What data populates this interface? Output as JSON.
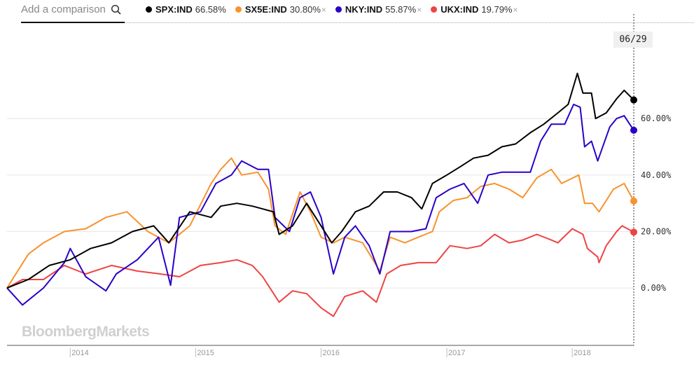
{
  "search": {
    "placeholder": "Add a comparison",
    "icon": "search-icon"
  },
  "legend": [
    {
      "ticker": "SPX:IND",
      "value": "66.58%",
      "color": "#000000",
      "removable": false
    },
    {
      "ticker": "SX5E:IND",
      "value": "30.80%",
      "color": "#f7922e",
      "removable": true
    },
    {
      "ticker": "NKY:IND",
      "value": "55.87%",
      "color": "#2a00c8",
      "removable": true
    },
    {
      "ticker": "UKX:IND",
      "value": "19.79%",
      "color": "#ee4444",
      "removable": true
    }
  ],
  "remove_glyph": "×",
  "cursor_date": "06/29",
  "watermark": "BloombergMarkets",
  "chart_data": {
    "type": "line",
    "x_range": [
      "2013-07-01",
      "2018-06-29"
    ],
    "ylim": [
      -20.3,
      90.8
    ],
    "yticks": [
      0,
      20,
      40,
      60
    ],
    "ytick_labels": [
      "0.00%",
      "20.00%",
      "40.00%",
      "60.00%"
    ],
    "xticks": [
      "2014-01-01",
      "2015-01-01",
      "2016-01-01",
      "2017-01-01",
      "2018-01-01"
    ],
    "xtick_labels": [
      "2014",
      "2015",
      "2016",
      "2017",
      "2018"
    ],
    "grid": true,
    "legend_placement": "top",
    "series": [
      {
        "name": "SPX:IND",
        "color": "#000000",
        "points": [
          [
            "2013-07-01",
            0
          ],
          [
            "2013-09-01",
            3
          ],
          [
            "2013-11-01",
            8
          ],
          [
            "2014-01-01",
            10
          ],
          [
            "2014-03-01",
            14
          ],
          [
            "2014-05-01",
            16
          ],
          [
            "2014-07-01",
            20
          ],
          [
            "2014-09-01",
            22
          ],
          [
            "2014-10-15",
            16
          ],
          [
            "2014-12-15",
            27
          ],
          [
            "2015-02-15",
            25
          ],
          [
            "2015-03-15",
            29
          ],
          [
            "2015-05-01",
            30
          ],
          [
            "2015-06-15",
            29
          ],
          [
            "2015-07-15",
            28
          ],
          [
            "2015-08-15",
            27
          ],
          [
            "2015-09-01",
            19
          ],
          [
            "2015-10-10",
            22
          ],
          [
            "2015-11-20",
            30
          ],
          [
            "2016-01-01",
            22
          ],
          [
            "2016-02-01",
            16
          ],
          [
            "2016-03-01",
            20
          ],
          [
            "2016-04-10",
            27
          ],
          [
            "2016-05-20",
            29
          ],
          [
            "2016-07-01",
            34
          ],
          [
            "2016-08-10",
            34
          ],
          [
            "2016-09-20",
            32
          ],
          [
            "2016-10-20",
            28
          ],
          [
            "2016-11-20",
            37
          ],
          [
            "2017-01-01",
            40
          ],
          [
            "2017-02-10",
            43
          ],
          [
            "2017-03-20",
            46
          ],
          [
            "2017-05-01",
            47
          ],
          [
            "2017-06-10",
            50
          ],
          [
            "2017-07-20",
            51
          ],
          [
            "2017-09-01",
            55
          ],
          [
            "2017-10-10",
            58
          ],
          [
            "2017-11-20",
            62
          ],
          [
            "2017-12-20",
            65
          ],
          [
            "2018-01-16",
            76
          ],
          [
            "2018-02-01",
            69
          ],
          [
            "2018-02-26",
            69
          ],
          [
            "2018-03-10",
            60
          ],
          [
            "2018-04-10",
            62
          ],
          [
            "2018-05-10",
            67
          ],
          [
            "2018-06-01",
            70
          ],
          [
            "2018-06-29",
            66.58
          ]
        ]
      },
      {
        "name": "SX5E:IND",
        "color": "#f7922e",
        "points": [
          [
            "2013-07-01",
            0
          ],
          [
            "2013-09-01",
            12
          ],
          [
            "2013-10-15",
            16
          ],
          [
            "2013-12-15",
            20
          ],
          [
            "2014-02-15",
            21
          ],
          [
            "2014-04-15",
            25
          ],
          [
            "2014-06-15",
            27
          ],
          [
            "2014-08-15",
            20
          ],
          [
            "2014-10-15",
            16
          ],
          [
            "2014-12-15",
            22
          ],
          [
            "2015-02-15",
            37
          ],
          [
            "2015-03-15",
            42
          ],
          [
            "2015-04-15",
            46
          ],
          [
            "2015-05-15",
            40
          ],
          [
            "2015-07-01",
            41
          ],
          [
            "2015-08-01",
            35
          ],
          [
            "2015-08-20",
            22
          ],
          [
            "2015-09-20",
            19
          ],
          [
            "2015-11-01",
            34
          ],
          [
            "2015-12-01",
            27
          ],
          [
            "2016-01-01",
            18
          ],
          [
            "2016-02-06",
            16
          ],
          [
            "2016-03-10",
            18
          ],
          [
            "2016-05-01",
            16
          ],
          [
            "2016-06-20",
            6
          ],
          [
            "2016-07-20",
            18
          ],
          [
            "2016-09-01",
            16
          ],
          [
            "2016-10-10",
            18
          ],
          [
            "2016-11-20",
            20
          ],
          [
            "2016-12-10",
            27
          ],
          [
            "2017-01-20",
            31
          ],
          [
            "2017-03-01",
            32
          ],
          [
            "2017-04-10",
            36
          ],
          [
            "2017-05-20",
            37
          ],
          [
            "2017-07-01",
            35
          ],
          [
            "2017-08-10",
            32
          ],
          [
            "2017-09-20",
            39
          ],
          [
            "2017-11-01",
            42
          ],
          [
            "2017-12-01",
            37
          ],
          [
            "2018-01-20",
            40
          ],
          [
            "2018-02-06",
            30
          ],
          [
            "2018-03-01",
            30
          ],
          [
            "2018-03-20",
            27
          ],
          [
            "2018-05-01",
            35
          ],
          [
            "2018-06-01",
            37
          ],
          [
            "2018-06-29",
            30.8
          ]
        ]
      },
      {
        "name": "NKY:IND",
        "color": "#2a00c8",
        "points": [
          [
            "2013-07-01",
            0
          ],
          [
            "2013-08-15",
            -6
          ],
          [
            "2013-10-15",
            0
          ],
          [
            "2013-12-15",
            9
          ],
          [
            "2014-01-01",
            14
          ],
          [
            "2014-02-15",
            4
          ],
          [
            "2014-04-15",
            -1
          ],
          [
            "2014-05-15",
            5
          ],
          [
            "2014-07-15",
            10
          ],
          [
            "2014-09-15",
            18
          ],
          [
            "2014-10-20",
            1
          ],
          [
            "2014-11-15",
            25
          ],
          [
            "2015-01-15",
            27
          ],
          [
            "2015-03-01",
            37
          ],
          [
            "2015-04-15",
            40
          ],
          [
            "2015-05-15",
            45
          ],
          [
            "2015-07-01",
            42
          ],
          [
            "2015-08-01",
            42
          ],
          [
            "2015-08-20",
            25
          ],
          [
            "2015-10-01",
            20
          ],
          [
            "2015-11-01",
            32
          ],
          [
            "2015-12-01",
            34
          ],
          [
            "2016-01-01",
            25
          ],
          [
            "2016-02-06",
            5
          ],
          [
            "2016-03-10",
            18
          ],
          [
            "2016-04-10",
            22
          ],
          [
            "2016-05-20",
            15
          ],
          [
            "2016-06-20",
            5
          ],
          [
            "2016-07-20",
            20
          ],
          [
            "2016-09-20",
            20
          ],
          [
            "2016-11-01",
            21
          ],
          [
            "2016-12-01",
            32
          ],
          [
            "2017-01-10",
            35
          ],
          [
            "2017-02-20",
            37
          ],
          [
            "2017-04-01",
            30
          ],
          [
            "2017-05-01",
            40
          ],
          [
            "2017-06-10",
            41
          ],
          [
            "2017-07-20",
            41
          ],
          [
            "2017-09-01",
            41
          ],
          [
            "2017-10-01",
            52
          ],
          [
            "2017-11-01",
            58
          ],
          [
            "2017-12-10",
            58
          ],
          [
            "2018-01-05",
            65
          ],
          [
            "2018-01-24",
            64
          ],
          [
            "2018-02-06",
            50
          ],
          [
            "2018-02-26",
            52
          ],
          [
            "2018-03-16",
            45
          ],
          [
            "2018-04-20",
            57
          ],
          [
            "2018-05-10",
            60
          ],
          [
            "2018-06-01",
            61
          ],
          [
            "2018-06-29",
            55.87
          ]
        ]
      },
      {
        "name": "UKX:IND",
        "color": "#ee4444",
        "points": [
          [
            "2013-07-01",
            0
          ],
          [
            "2013-08-15",
            3
          ],
          [
            "2013-10-15",
            3
          ],
          [
            "2013-12-15",
            8
          ],
          [
            "2014-02-15",
            5
          ],
          [
            "2014-05-01",
            8
          ],
          [
            "2014-07-15",
            6
          ],
          [
            "2014-09-20",
            5
          ],
          [
            "2014-11-15",
            4
          ],
          [
            "2015-01-15",
            8
          ],
          [
            "2015-03-15",
            9
          ],
          [
            "2015-05-01",
            10
          ],
          [
            "2015-06-15",
            8
          ],
          [
            "2015-07-15",
            4
          ],
          [
            "2015-09-01",
            -5
          ],
          [
            "2015-10-10",
            -1
          ],
          [
            "2015-11-20",
            -2
          ],
          [
            "2016-01-01",
            -7
          ],
          [
            "2016-02-06",
            -10
          ],
          [
            "2016-03-10",
            -3
          ],
          [
            "2016-05-01",
            -1
          ],
          [
            "2016-06-10",
            -5
          ],
          [
            "2016-07-10",
            5
          ],
          [
            "2016-08-20",
            8
          ],
          [
            "2016-10-10",
            9
          ],
          [
            "2016-12-01",
            9
          ],
          [
            "2017-01-10",
            15
          ],
          [
            "2017-03-01",
            14
          ],
          [
            "2017-04-10",
            15
          ],
          [
            "2017-05-20",
            19
          ],
          [
            "2017-07-01",
            16
          ],
          [
            "2017-08-10",
            17
          ],
          [
            "2017-09-20",
            19
          ],
          [
            "2017-11-01",
            17
          ],
          [
            "2017-11-20",
            16
          ],
          [
            "2018-01-01",
            21
          ],
          [
            "2018-02-01",
            19
          ],
          [
            "2018-02-14",
            14
          ],
          [
            "2018-03-16",
            11
          ],
          [
            "2018-03-20",
            9
          ],
          [
            "2018-04-10",
            15
          ],
          [
            "2018-05-10",
            20
          ],
          [
            "2018-05-26",
            22
          ],
          [
            "2018-06-29",
            19.79
          ]
        ]
      }
    ]
  }
}
